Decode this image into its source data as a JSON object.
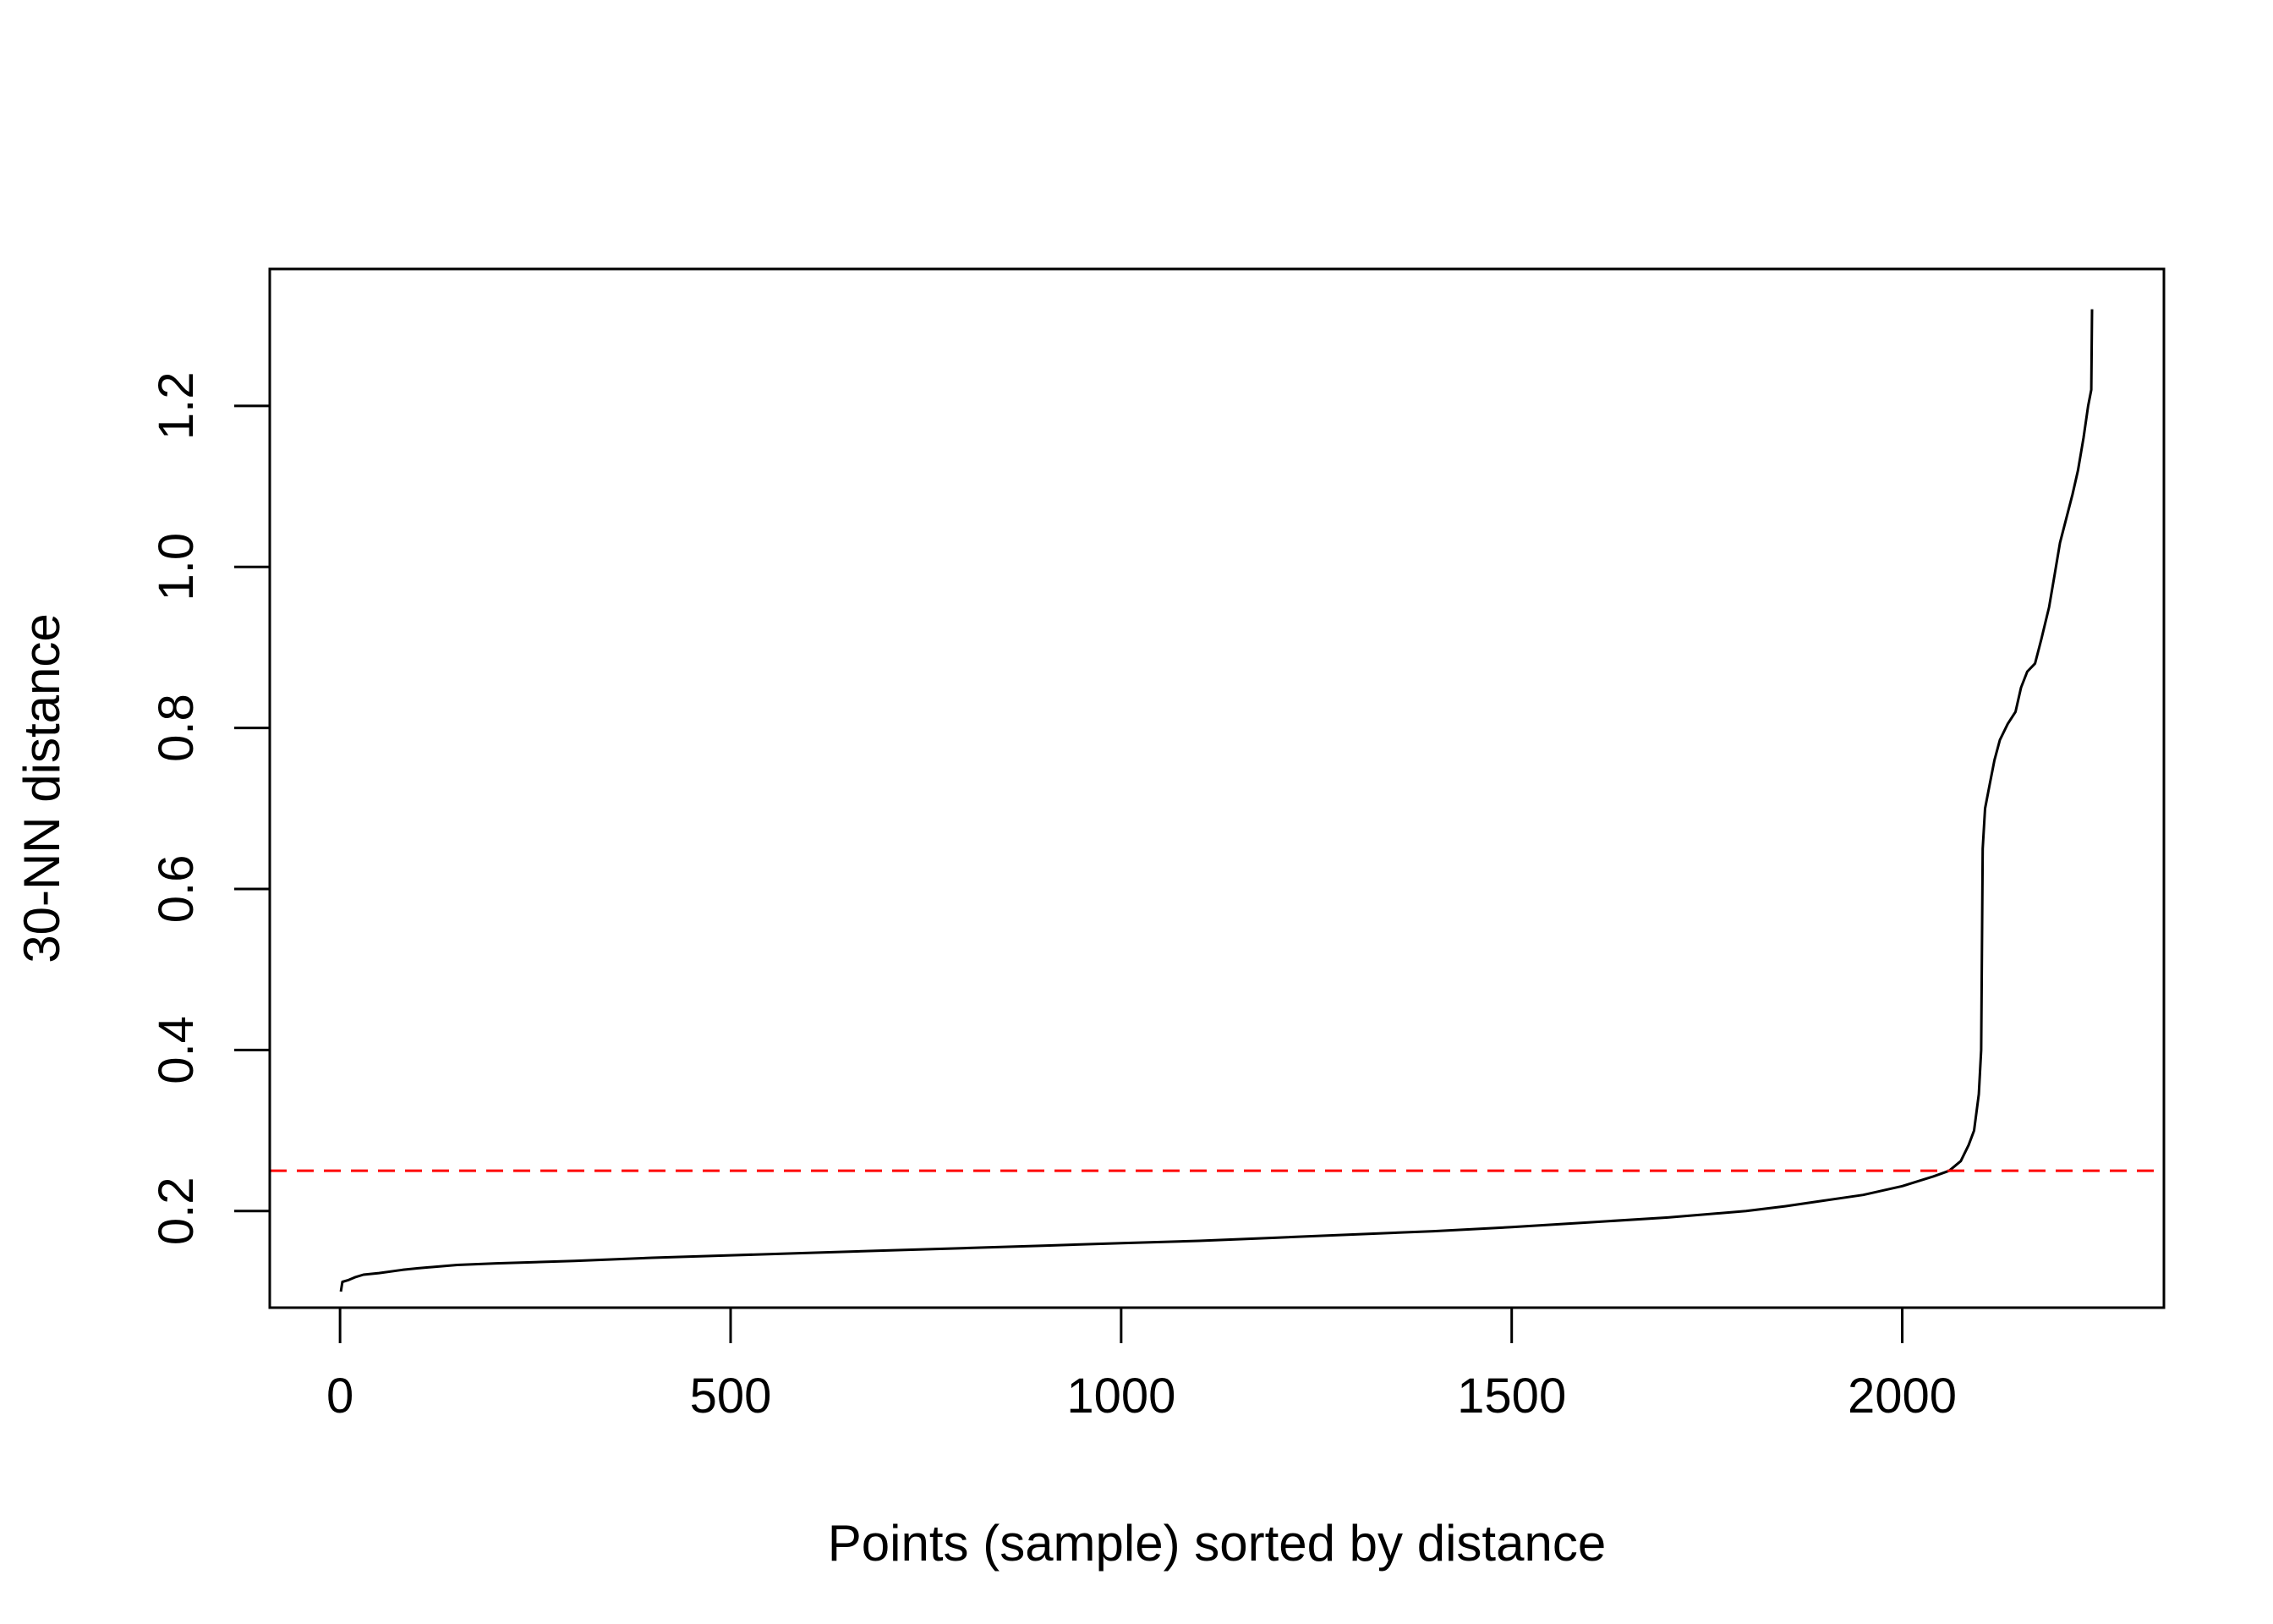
{
  "chart_data": {
    "type": "line",
    "title": "",
    "xlabel": "Points (sample) sorted by distance",
    "ylabel": "30-NN distance",
    "xlim": [
      -90,
      2335
    ],
    "ylim": [
      0.08,
      1.37
    ],
    "x_ticks": [
      0,
      500,
      1000,
      1500,
      2000
    ],
    "x_tick_labels": [
      "0",
      "500",
      "1000",
      "1500",
      "2000"
    ],
    "y_ticks": [
      0.2,
      0.4,
      0.6,
      0.8,
      1.0,
      1.2
    ],
    "y_tick_labels": [
      "0.2",
      "0.4",
      "0.6",
      "0.8",
      "1.0",
      "1.2"
    ],
    "grid": false,
    "series": [
      {
        "color": "#000000",
        "points": [
          [
            1,
            0.1
          ],
          [
            3,
            0.112
          ],
          [
            10,
            0.114
          ],
          [
            20,
            0.118
          ],
          [
            30,
            0.121
          ],
          [
            50,
            0.123
          ],
          [
            80,
            0.127
          ],
          [
            100,
            0.129
          ],
          [
            150,
            0.133
          ],
          [
            200,
            0.135
          ],
          [
            300,
            0.138
          ],
          [
            400,
            0.142
          ],
          [
            500,
            0.145
          ],
          [
            600,
            0.148
          ],
          [
            700,
            0.151
          ],
          [
            800,
            0.154
          ],
          [
            900,
            0.157
          ],
          [
            1000,
            0.16
          ],
          [
            1100,
            0.163
          ],
          [
            1200,
            0.167
          ],
          [
            1300,
            0.171
          ],
          [
            1400,
            0.175
          ],
          [
            1500,
            0.18
          ],
          [
            1600,
            0.186
          ],
          [
            1700,
            0.192
          ],
          [
            1800,
            0.2
          ],
          [
            1850,
            0.206
          ],
          [
            1900,
            0.213
          ],
          [
            1950,
            0.22
          ],
          [
            2000,
            0.231
          ],
          [
            2040,
            0.243
          ],
          [
            2060,
            0.25
          ],
          [
            2075,
            0.262
          ],
          [
            2085,
            0.282
          ],
          [
            2092,
            0.3
          ],
          [
            2098,
            0.345
          ],
          [
            2101,
            0.4
          ],
          [
            2103,
            0.65
          ],
          [
            2106,
            0.7
          ],
          [
            2112,
            0.73
          ],
          [
            2118,
            0.76
          ],
          [
            2125,
            0.785
          ],
          [
            2135,
            0.805
          ],
          [
            2145,
            0.82
          ],
          [
            2152,
            0.85
          ],
          [
            2160,
            0.87
          ],
          [
            2170,
            0.88
          ],
          [
            2178,
            0.91
          ],
          [
            2188,
            0.95
          ],
          [
            2195,
            0.99
          ],
          [
            2202,
            1.03
          ],
          [
            2210,
            1.06
          ],
          [
            2218,
            1.09
          ],
          [
            2225,
            1.12
          ],
          [
            2232,
            1.16
          ],
          [
            2238,
            1.2
          ],
          [
            2242,
            1.22
          ],
          [
            2243,
            1.32
          ]
        ]
      }
    ],
    "reference_lines": [
      {
        "orientation": "horizontal",
        "value": 0.25,
        "color": "#ff0000",
        "style": "dashed"
      }
    ]
  }
}
